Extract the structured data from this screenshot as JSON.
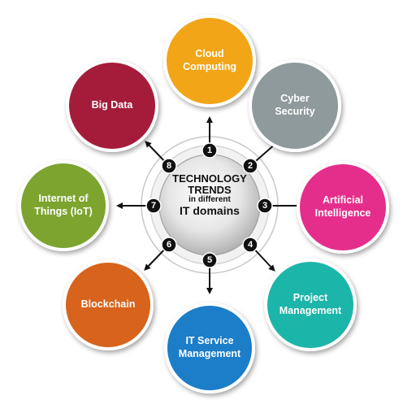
{
  "hub": {
    "line1": "TECHNOLOGY",
    "line2": "TRENDS",
    "line3": "in different",
    "line4": "IT domains"
  },
  "nodes": [
    {
      "number": "1",
      "line1": "Cloud",
      "line2": "Computing",
      "color": "#f2a516"
    },
    {
      "number": "2",
      "line1": "Cyber",
      "line2": "Security",
      "color": "#8e9a9c"
    },
    {
      "number": "3",
      "line1": "Artificial",
      "line2": "Intelligence",
      "color": "#e52f8c"
    },
    {
      "number": "4",
      "line1": "Project",
      "line2": "Management",
      "color": "#1db5aa"
    },
    {
      "number": "5",
      "line1": "IT Service",
      "line2": "Management",
      "color": "#1f7dc9"
    },
    {
      "number": "6",
      "line1": "Blockchain",
      "line2": "",
      "color": "#d7631a"
    },
    {
      "number": "7",
      "line1": "Internet of",
      "line2": "Things (IoT)",
      "color": "#7ba42e"
    },
    {
      "number": "8",
      "line1": "Big Data",
      "line2": "",
      "color": "#a51c3a"
    }
  ]
}
